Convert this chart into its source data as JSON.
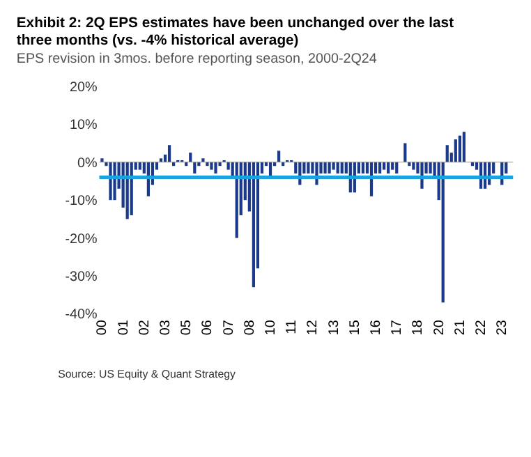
{
  "chart_data": {
    "type": "bar",
    "title": "Exhibit 2: 2Q EPS estimates have been unchanged over the last three months (vs. -4% historical average)",
    "subtitle": "EPS revision in 3mos. before reporting season, 2000-2Q24",
    "annotations": [
      "Source: US Equity & Quant Strategy"
    ],
    "categories": [
      "00",
      null,
      null,
      null,
      null,
      "01",
      null,
      null,
      null,
      null,
      "02",
      null,
      null,
      null,
      null,
      "03",
      null,
      null,
      null,
      null,
      "05",
      null,
      null,
      null,
      null,
      "06",
      null,
      null,
      null,
      null,
      "07",
      null,
      null,
      null,
      null,
      "08",
      null,
      null,
      null,
      null,
      "10",
      null,
      null,
      null,
      null,
      "11",
      null,
      null,
      null,
      null,
      "12",
      null,
      null,
      null,
      null,
      "13",
      null,
      null,
      null,
      null,
      "15",
      null,
      null,
      null,
      null,
      "16",
      null,
      null,
      null,
      null,
      "17",
      null,
      null,
      null,
      null,
      "18",
      null,
      null,
      null,
      null,
      "20",
      null,
      null,
      null,
      null,
      "21",
      null,
      null,
      null,
      null,
      "22",
      null,
      null,
      null,
      null,
      "23",
      null,
      null
    ],
    "values": [
      1,
      -1,
      -10,
      -10,
      -7,
      -12,
      -15,
      -14,
      -2,
      -2,
      -3,
      -9,
      -6,
      -2,
      1,
      2,
      4.5,
      -1,
      0.5,
      0.5,
      -1,
      2.5,
      -3,
      -1,
      1,
      -1,
      -2,
      -3,
      -1,
      0.5,
      -2,
      -4,
      -20,
      -14,
      -10,
      -13,
      -33,
      -28,
      -3,
      -1,
      -4,
      -1,
      3,
      -1,
      0.5,
      0.5,
      -3,
      -6,
      -3,
      -3,
      -3,
      -6,
      -3,
      -3,
      -3,
      -2,
      -3,
      -3,
      -3,
      -8,
      -8,
      -3,
      -3,
      -3,
      -9,
      -3,
      -3,
      -2,
      -3,
      -2,
      -3,
      0,
      5,
      -1,
      -2,
      -3,
      -7,
      -3,
      -3,
      -4,
      -10,
      -37,
      4.5,
      2.5,
      6,
      7,
      8,
      0,
      -1,
      -2,
      -7,
      -7,
      -6,
      -3,
      0,
      -6,
      -3,
      0
    ],
    "color": "#1b3a8c",
    "ylim": [
      -40,
      20
    ],
    "yticks": [
      {
        "value": -40,
        "label": "-40%"
      },
      {
        "value": -30,
        "label": "-30%"
      },
      {
        "value": -20,
        "label": "-20%"
      },
      {
        "value": -10,
        "label": "-10%"
      },
      {
        "value": 0,
        "label": "0%"
      },
      {
        "value": 10,
        "label": "10%"
      },
      {
        "value": 20,
        "label": "20%"
      }
    ],
    "ref_lines": [
      {
        "axis": "y",
        "value": 0,
        "color": "#999999"
      },
      {
        "axis": "y",
        "value": -4,
        "color": "#1aa3e0"
      }
    ],
    "grid": false
  }
}
